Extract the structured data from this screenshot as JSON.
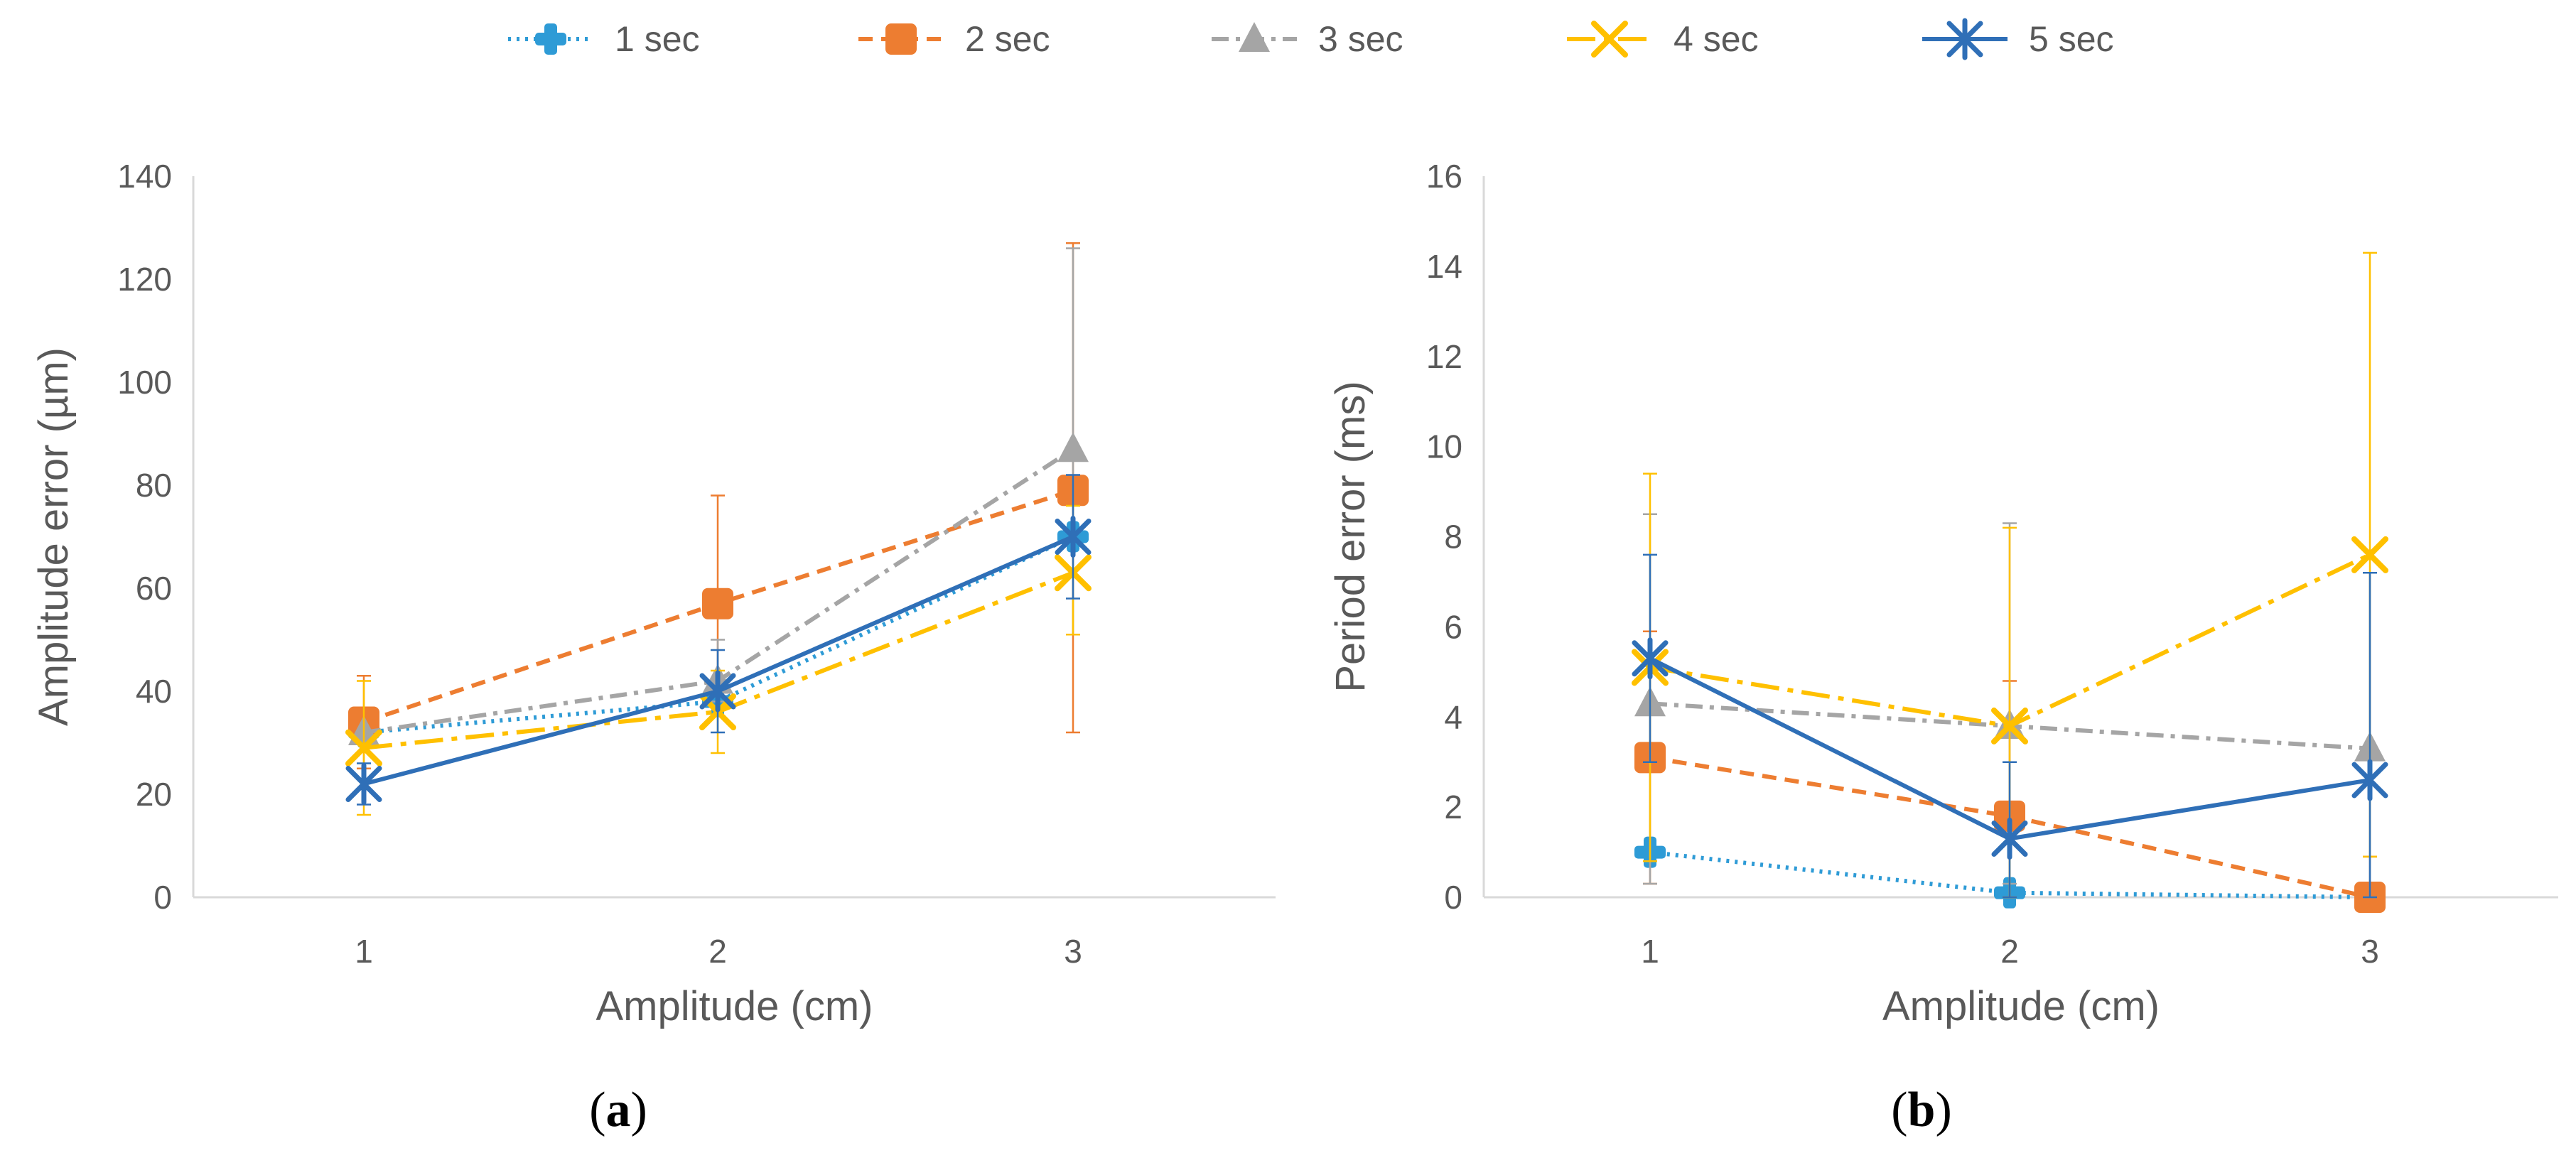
{
  "legend": [
    {
      "name": "1 sec",
      "color": "#2e9bd6",
      "dash": "dotted",
      "marker": "plus-icon"
    },
    {
      "name": "2 sec",
      "color": "#ed7d31",
      "dash": "dashed",
      "marker": "square-icon"
    },
    {
      "name": "3 sec",
      "color": "#a5a5a5",
      "dash": "dashdot",
      "marker": "triangle-icon"
    },
    {
      "name": "4 sec",
      "color": "#ffc000",
      "dash": "longdashdot",
      "marker": "x-icon"
    },
    {
      "name": "5 sec",
      "color": "#2f6fb7",
      "dash": "solid",
      "marker": "asterisk-icon"
    }
  ],
  "chart_data": [
    {
      "type": "line",
      "panel_label": "(a)",
      "panel_letter": "a",
      "xlabel": "Amplitude  (cm)",
      "ylabel": "Amplitude error (µm)",
      "categories": [
        "1",
        "2",
        "3"
      ],
      "ylim": [
        0,
        140
      ],
      "yticks": [
        "0",
        "20",
        "40",
        "60",
        "80",
        "100",
        "120",
        "140"
      ],
      "series": [
        {
          "name": "1 sec",
          "values": [
            32,
            38,
            70
          ],
          "err_low": [
            32,
            38,
            70
          ],
          "err_high": [
            32,
            38,
            70
          ]
        },
        {
          "name": "2 sec",
          "values": [
            34,
            57,
            79
          ],
          "err_low": [
            25,
            37,
            32
          ],
          "err_high": [
            43,
            78,
            127
          ]
        },
        {
          "name": "3 sec",
          "values": [
            32,
            42,
            87
          ],
          "err_low": [
            32,
            38,
            51
          ],
          "err_high": [
            32,
            50,
            126
          ]
        },
        {
          "name": "4 sec",
          "values": [
            29,
            36,
            63
          ],
          "err_low": [
            16,
            28,
            51
          ],
          "err_high": [
            42,
            44,
            76
          ]
        },
        {
          "name": "5 sec",
          "values": [
            22,
            40,
            70
          ],
          "err_low": [
            18,
            32,
            58
          ],
          "err_high": [
            26,
            48,
            82
          ]
        }
      ]
    },
    {
      "type": "line",
      "panel_label": "(b)",
      "panel_letter": "b",
      "xlabel": "Amplitude  (cm)",
      "ylabel": "Period error (ms)",
      "categories": [
        "1",
        "2",
        "3"
      ],
      "ylim": [
        0,
        16
      ],
      "yticks": [
        "0",
        "2",
        "4",
        "6",
        "8",
        "10",
        "12",
        "14",
        "16"
      ],
      "series": [
        {
          "name": "1 sec",
          "values": [
            1.0,
            0.1,
            0.0
          ],
          "err_low": [
            1.0,
            0.1,
            0.0
          ],
          "err_high": [
            1.0,
            0.1,
            0.0
          ]
        },
        {
          "name": "2 sec",
          "values": [
            3.1,
            1.8,
            0.0
          ],
          "err_low": [
            0.3,
            0.0,
            0.0
          ],
          "err_high": [
            5.9,
            4.8,
            0.9
          ]
        },
        {
          "name": "3 sec",
          "values": [
            4.3,
            3.8,
            3.3
          ],
          "err_low": [
            0.3,
            0.3,
            0.0
          ],
          "err_high": [
            8.5,
            8.3,
            7.2
          ]
        },
        {
          "name": "4 sec",
          "values": [
            5.1,
            3.8,
            7.6
          ],
          "err_low": [
            0.8,
            0.0,
            0.9
          ],
          "err_high": [
            9.4,
            8.2,
            14.3
          ]
        },
        {
          "name": "5 sec",
          "values": [
            5.3,
            1.3,
            2.6
          ],
          "err_low": [
            3.0,
            0.0,
            0.0
          ],
          "err_high": [
            7.6,
            3.0,
            7.2
          ]
        }
      ]
    }
  ]
}
